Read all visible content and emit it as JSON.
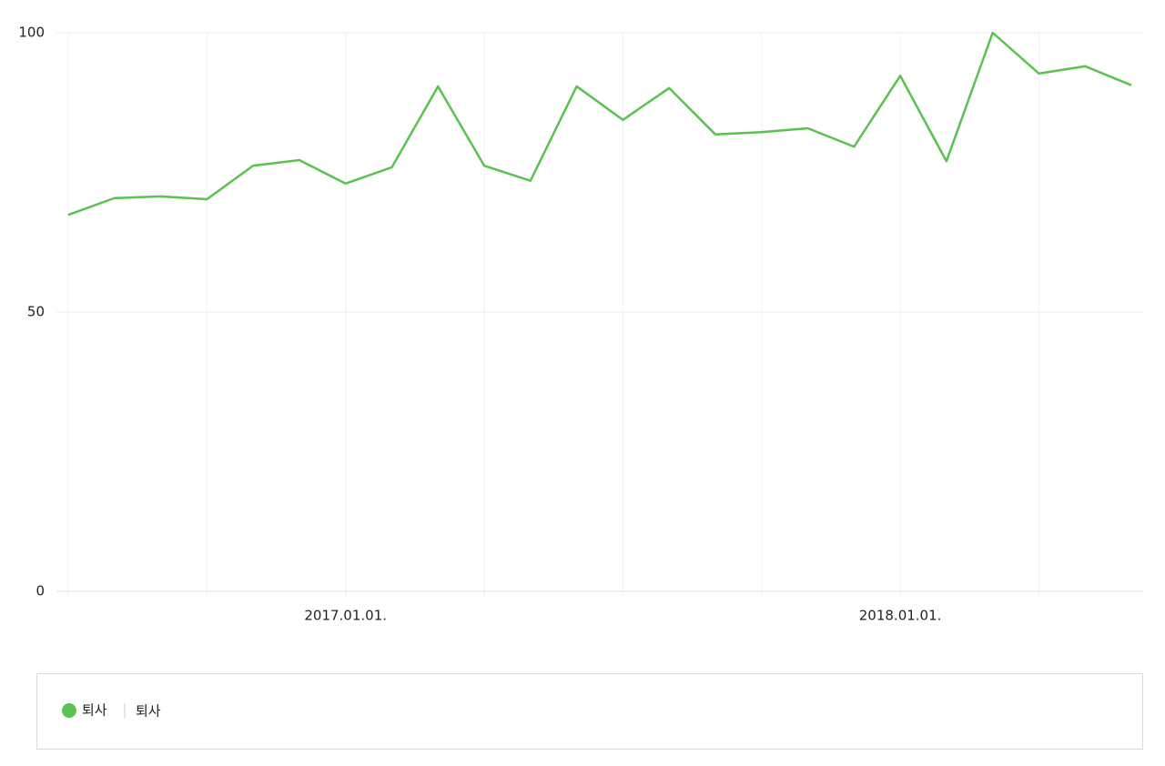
{
  "chart_data": {
    "type": "line",
    "categories": [
      null,
      null,
      null,
      null,
      null,
      null,
      "2017.01.01.",
      null,
      null,
      null,
      null,
      null,
      null,
      null,
      null,
      null,
      null,
      null,
      "2018.01.01.",
      null,
      null,
      null,
      null,
      null
    ],
    "series": [
      {
        "name": "퇴사",
        "keyword": "퇴사",
        "color": "#5ac24f",
        "values": [
          67.4,
          70.4,
          70.7,
          70.2,
          76.2,
          77.2,
          73.0,
          75.9,
          90.4,
          76.2,
          73.5,
          90.4,
          84.4,
          90.1,
          81.8,
          82.2,
          82.9,
          79.6,
          92.3,
          77.0,
          100,
          92.7,
          94.0,
          90.6
        ]
      }
    ],
    "ylim": [
      0,
      100
    ],
    "yticks": [
      0,
      50,
      100
    ],
    "grid": true
  }
}
